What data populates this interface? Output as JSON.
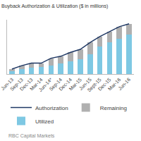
{
  "chart_data": {
    "type": "bar",
    "title": "Buyback Authorization & Utilization ($ in millions)",
    "categories": [
      "Jun-13",
      "Sep-13",
      "Dec-13",
      "Mar-14",
      "Jun-14*",
      "Sep-14",
      "Dec-14",
      "Mar-15",
      "Jun-15",
      "Sept-15",
      "Dec-15",
      "Mar-16",
      "Jun-16"
    ],
    "series": [
      {
        "name": "Utilized",
        "type": "bar",
        "color": "#7EC8E3",
        "values": [
          3.0,
          5.0,
          6.5,
          7.5,
          8.5,
          11.0,
          13.0,
          15.0,
          20.0,
          28.0,
          32.0,
          36.0,
          40.0
        ]
      },
      {
        "name": "Remaining",
        "type": "bar",
        "color": "#B0B0B0",
        "values": [
          2.0,
          3.5,
          4.5,
          3.5,
          7.5,
          7.0,
          9.0,
          10.0,
          12.0,
          10.0,
          11.0,
          12.0,
          11.0
        ]
      },
      {
        "name": "Authorization",
        "type": "line",
        "color": "#1F3864",
        "values": [
          5.0,
          8.5,
          11.0,
          11.0,
          16.0,
          18.0,
          22.0,
          25.0,
          32.0,
          38.0,
          43.0,
          48.0,
          51.0
        ]
      }
    ],
    "stacked": true,
    "ylim": [
      0,
      55.08
    ],
    "tick_labels": "x",
    "grid": false,
    "legend": "bottom",
    "annotations": [
      "RBC Capital Markets"
    ]
  }
}
